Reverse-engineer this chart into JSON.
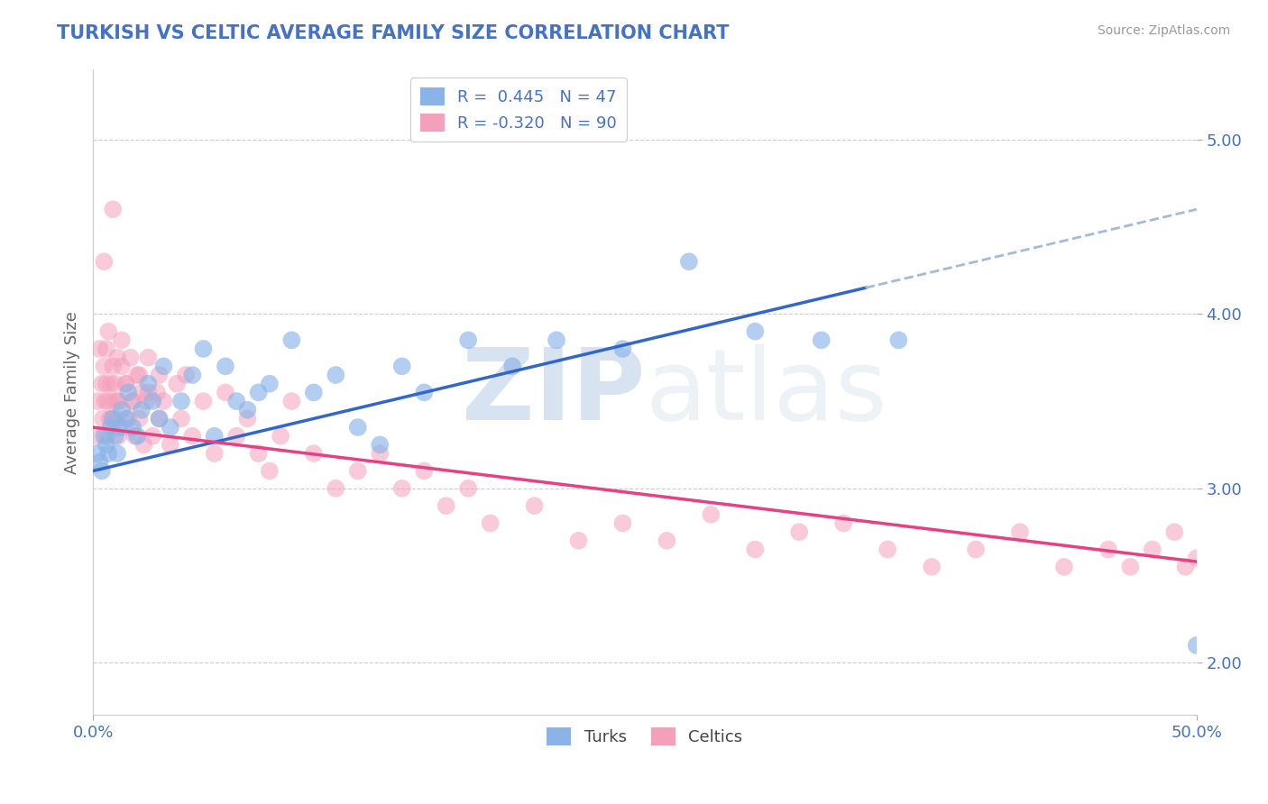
{
  "title": "TURKISH VS CELTIC AVERAGE FAMILY SIZE CORRELATION CHART",
  "source_text": "Source: ZipAtlas.com",
  "ylabel": "Average Family Size",
  "xlim": [
    0.0,
    50.0
  ],
  "ylim": [
    1.7,
    5.4
  ],
  "yticks": [
    2.0,
    3.0,
    4.0,
    5.0
  ],
  "xticks": [
    0.0,
    50.0
  ],
  "xticklabels": [
    "0.0%",
    "50.0%"
  ],
  "yticklabels": [
    "2.00",
    "3.00",
    "4.00",
    "5.00"
  ],
  "blue_R": 0.445,
  "blue_N": 47,
  "pink_R": -0.32,
  "pink_N": 90,
  "blue_color": "#8ab4e8",
  "pink_color": "#f5a0bb",
  "blue_line_color": "#3366cc",
  "pink_line_color": "#e84080",
  "dashed_line_color": "#a0bcd8",
  "title_color": "#4472c4",
  "axis_label_color": "#666666",
  "tick_color": "#4472c4",
  "legend_R_color": "#4472c4",
  "background_color": "#ffffff",
  "blue_line_x0": 0.0,
  "blue_line_y0": 3.1,
  "blue_line_x1": 50.0,
  "blue_line_y1": 4.6,
  "blue_solid_end_x": 35.0,
  "pink_line_x0": 0.0,
  "pink_line_y0": 3.35,
  "pink_line_x1": 50.0,
  "pink_line_y1": 2.58,
  "turks_x": [
    0.2,
    0.3,
    0.4,
    0.5,
    0.6,
    0.7,
    0.8,
    0.9,
    1.0,
    1.1,
    1.2,
    1.3,
    1.5,
    1.6,
    1.8,
    2.0,
    2.2,
    2.5,
    2.7,
    3.0,
    3.2,
    3.5,
    4.0,
    4.5,
    5.0,
    5.5,
    6.0,
    6.5,
    7.0,
    7.5,
    8.0,
    9.0,
    10.0,
    11.0,
    12.0,
    13.0,
    14.0,
    15.0,
    17.0,
    19.0,
    21.0,
    24.0,
    27.0,
    30.0,
    33.0,
    36.5,
    50.0
  ],
  "turks_y": [
    3.2,
    3.15,
    3.1,
    3.3,
    3.25,
    3.2,
    3.35,
    3.4,
    3.3,
    3.2,
    3.35,
    3.45,
    3.4,
    3.55,
    3.35,
    3.3,
    3.45,
    3.6,
    3.5,
    3.4,
    3.7,
    3.35,
    3.5,
    3.65,
    3.8,
    3.3,
    3.7,
    3.5,
    3.45,
    3.55,
    3.6,
    3.85,
    3.55,
    3.65,
    3.35,
    3.25,
    3.7,
    3.55,
    3.85,
    3.7,
    3.85,
    3.8,
    4.3,
    3.9,
    3.85,
    3.85,
    2.1
  ],
  "celtics_x": [
    0.15,
    0.2,
    0.3,
    0.4,
    0.45,
    0.5,
    0.55,
    0.6,
    0.65,
    0.7,
    0.75,
    0.8,
    0.85,
    0.9,
    0.95,
    1.0,
    1.05,
    1.1,
    1.15,
    1.2,
    1.3,
    1.4,
    1.5,
    1.6,
    1.7,
    1.8,
    1.9,
    2.0,
    2.1,
    2.2,
    2.3,
    2.4,
    2.5,
    2.7,
    2.9,
    3.0,
    3.2,
    3.5,
    3.8,
    4.0,
    4.2,
    4.5,
    5.0,
    5.5,
    6.0,
    6.5,
    7.0,
    7.5,
    8.0,
    8.5,
    9.0,
    10.0,
    11.0,
    12.0,
    13.0,
    14.0,
    15.0,
    16.0,
    17.0,
    18.0,
    20.0,
    22.0,
    24.0,
    26.0,
    28.0,
    30.0,
    32.0,
    34.0,
    36.0,
    38.0,
    40.0,
    42.0,
    44.0,
    46.0,
    47.0,
    48.0,
    49.0,
    49.5,
    50.0,
    0.5,
    0.6,
    0.7,
    0.9,
    1.1,
    1.3,
    1.5,
    1.8,
    2.1,
    2.5,
    3.0
  ],
  "celtics_y": [
    3.3,
    3.5,
    3.8,
    3.6,
    3.4,
    3.7,
    3.5,
    3.6,
    3.3,
    3.5,
    3.4,
    3.6,
    3.4,
    3.7,
    3.5,
    3.6,
    3.4,
    3.5,
    3.3,
    3.5,
    3.7,
    3.35,
    3.6,
    3.4,
    3.75,
    3.5,
    3.3,
    3.65,
    3.4,
    3.55,
    3.25,
    3.5,
    3.75,
    3.3,
    3.55,
    3.4,
    3.5,
    3.25,
    3.6,
    3.4,
    3.65,
    3.3,
    3.5,
    3.2,
    3.55,
    3.3,
    3.4,
    3.2,
    3.1,
    3.3,
    3.5,
    3.2,
    3.0,
    3.1,
    3.2,
    3.0,
    3.1,
    2.9,
    3.0,
    2.8,
    2.9,
    2.7,
    2.8,
    2.7,
    2.85,
    2.65,
    2.75,
    2.8,
    2.65,
    2.55,
    2.65,
    2.75,
    2.55,
    2.65,
    2.55,
    2.65,
    2.75,
    2.55,
    2.6,
    4.3,
    3.8,
    3.9,
    4.6,
    3.75,
    3.85,
    3.6,
    3.5,
    3.65,
    3.55,
    3.65
  ]
}
